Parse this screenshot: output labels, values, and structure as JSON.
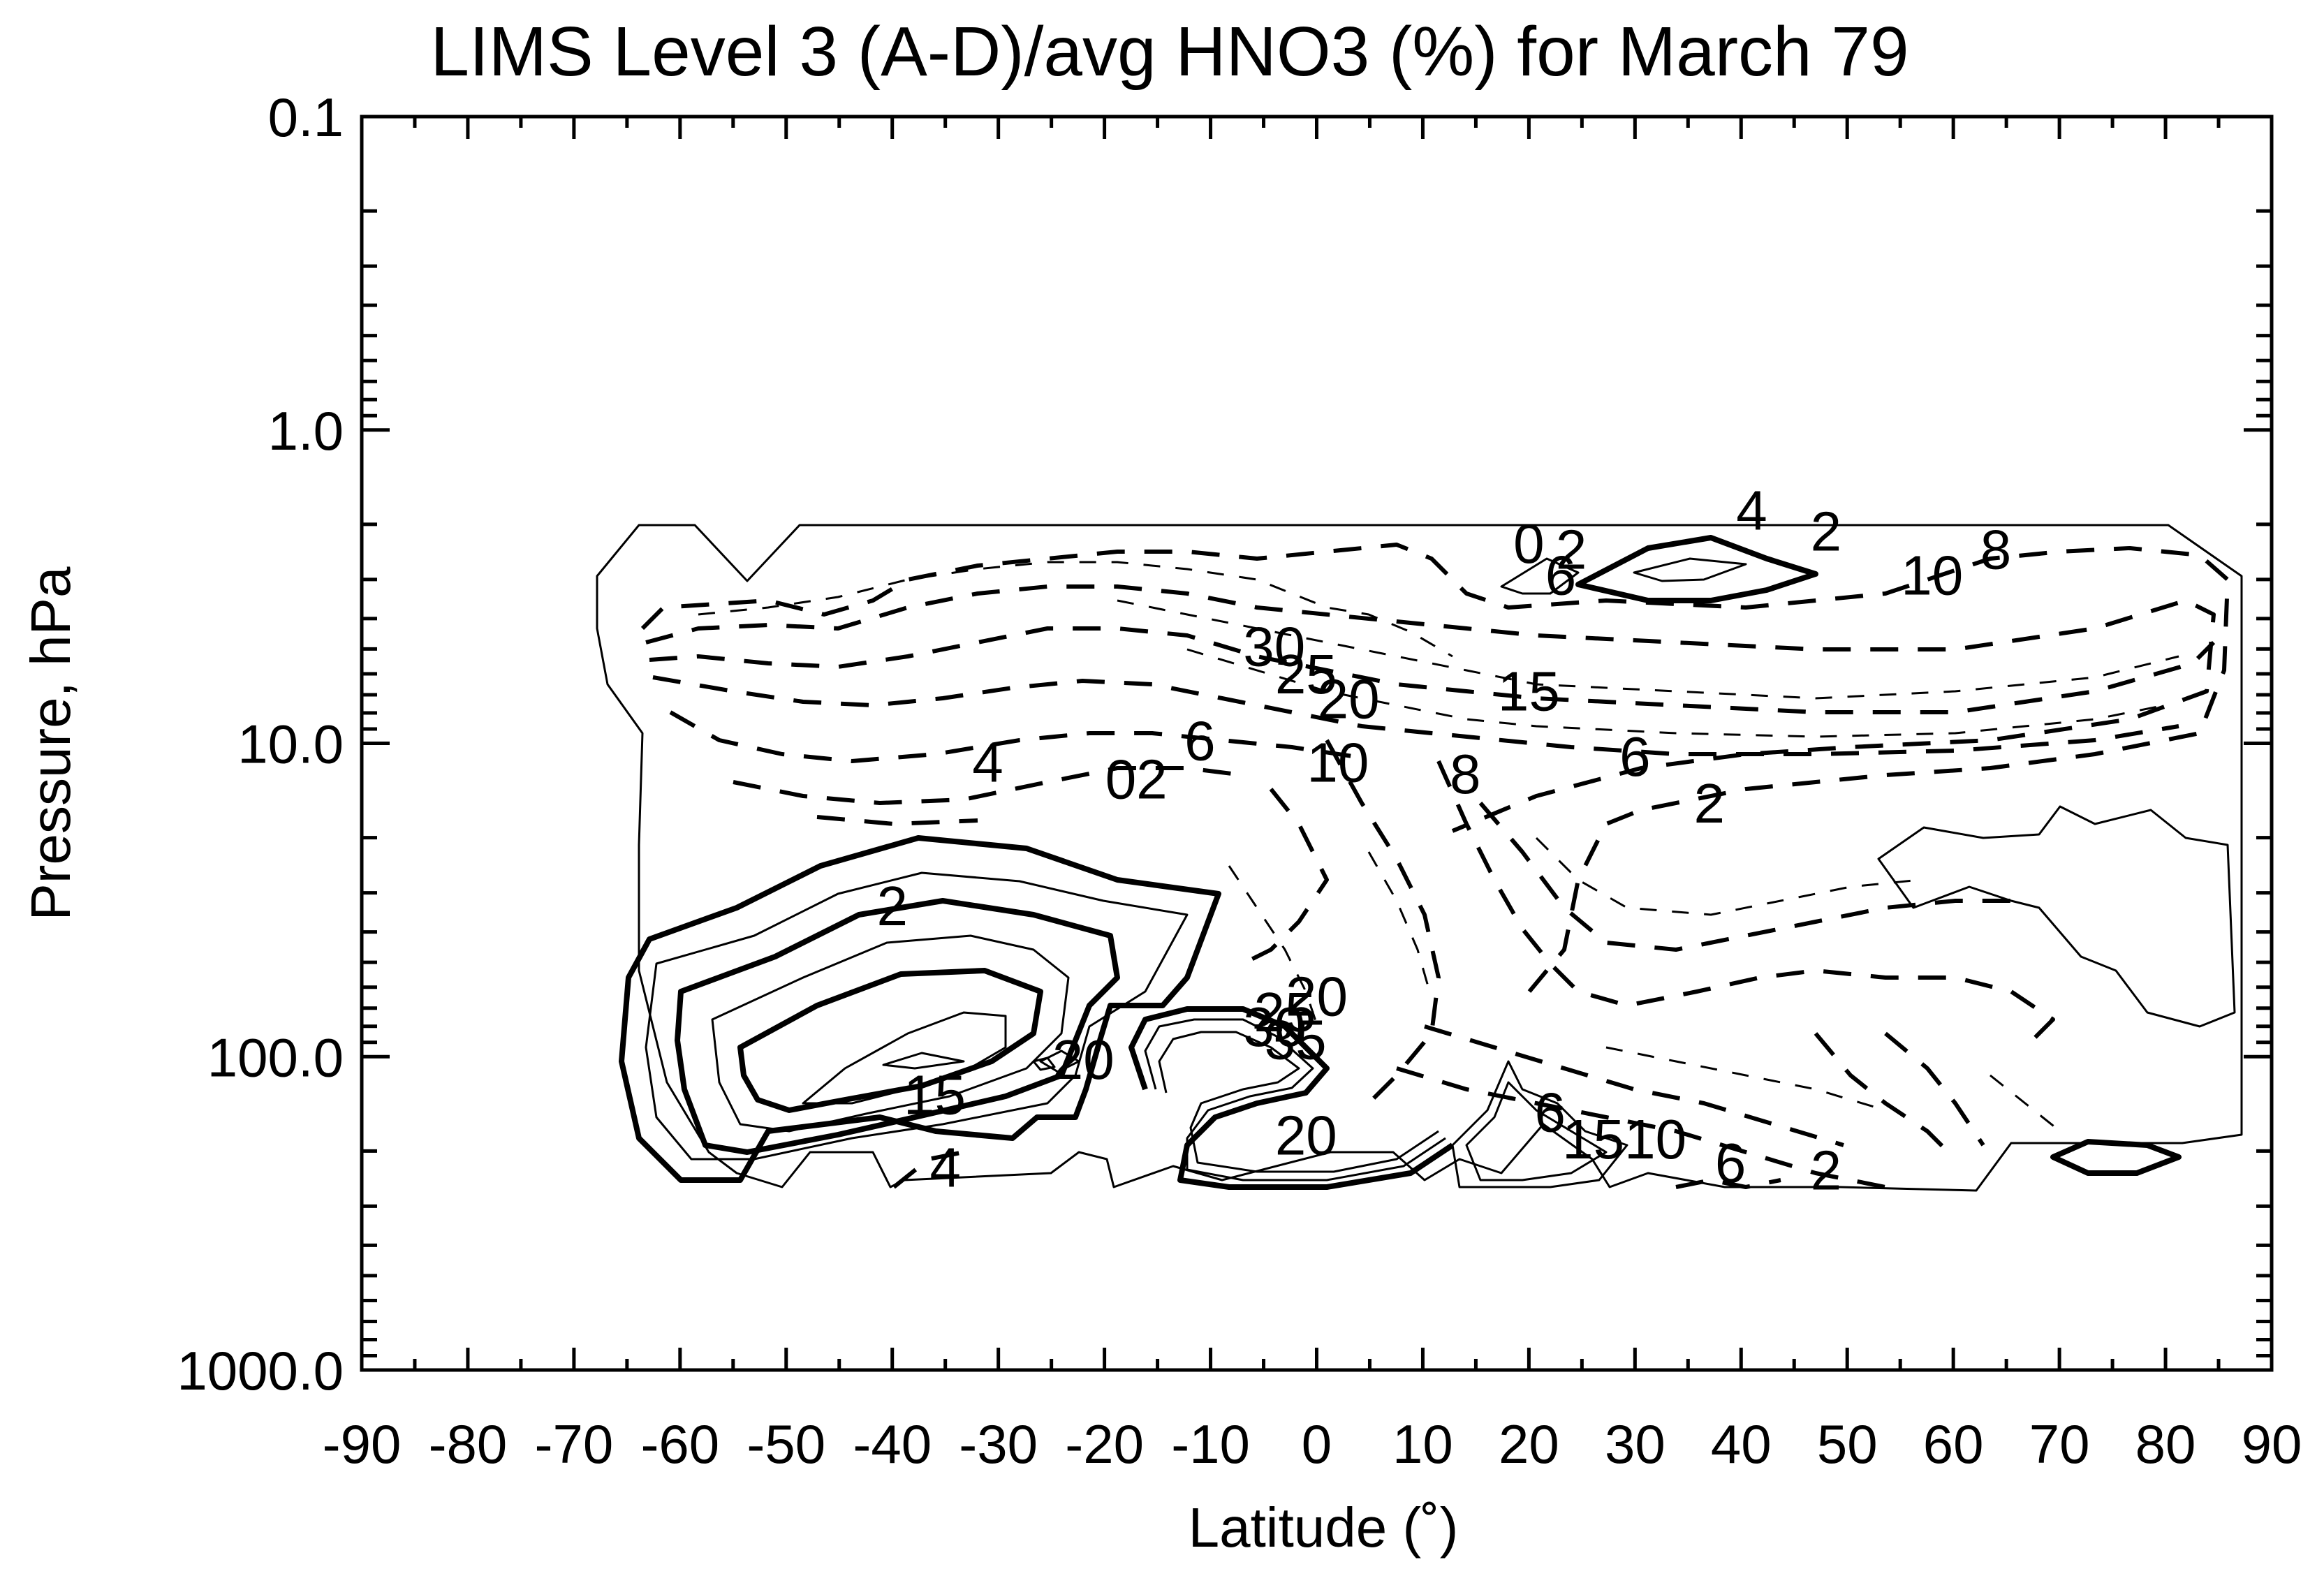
{
  "chart_data": {
    "type": "contour",
    "title": "LIMS Level 3 (A-D)/avg HNO3 (%) for March 79",
    "xlabel": "Latitude (˚)",
    "ylabel": "Pressure, hPa",
    "xlim": [
      -90,
      90
    ],
    "ylim": [
      1000.0,
      0.1
    ],
    "y_scale": "log",
    "x_ticks": [
      -90,
      -80,
      -70,
      -60,
      -50,
      -40,
      -30,
      -20,
      -10,
      0,
      10,
      20,
      30,
      40,
      50,
      60,
      70,
      80,
      90
    ],
    "x_tick_labels": [
      "-90",
      "-80",
      "-70",
      "-60",
      "-50",
      "-40",
      "-30",
      "-20",
      "-10",
      "0",
      "10",
      "20",
      "30",
      "40",
      "50",
      "60",
      "70",
      "80",
      "90"
    ],
    "y_ticks": [
      0.1,
      1.0,
      10.0,
      100.0,
      1000.0
    ],
    "y_tick_labels": [
      "0.1",
      "1.0",
      "10.0",
      "100.0",
      "1000.0"
    ],
    "line_styles": {
      "negative": "dashed",
      "positive": "solid",
      "zero": "thin solid"
    },
    "contour_labels": [
      {
        "text": "4",
        "lat": 41,
        "p": 1.8
      },
      {
        "text": "2",
        "lat": 48,
        "p": 2.1
      },
      {
        "text": "0",
        "lat": 20,
        "p": 2.3
      },
      {
        "text": "2",
        "lat": 24,
        "p": 2.4
      },
      {
        "text": "6",
        "lat": 23,
        "p": 2.9
      },
      {
        "text": "10",
        "lat": 58,
        "p": 2.9
      },
      {
        "text": "8",
        "lat": 64,
        "p": 2.4
      },
      {
        "text": "30",
        "lat": -4,
        "p": 4.9
      },
      {
        "text": "25",
        "lat": -1,
        "p": 6.0
      },
      {
        "text": "20",
        "lat": 3,
        "p": 7.2
      },
      {
        "text": "15",
        "lat": 20,
        "p": 6.8
      },
      {
        "text": "10",
        "lat": 2,
        "p": 11.5
      },
      {
        "text": "8",
        "lat": 14,
        "p": 12.5
      },
      {
        "text": "6",
        "lat": 30,
        "p": 11.0
      },
      {
        "text": "2",
        "lat": 37,
        "p": 15.5
      },
      {
        "text": "6",
        "lat": -11,
        "p": 9.8
      },
      {
        "text": "4",
        "lat": -31,
        "p": 11.5
      },
      {
        "text": "02",
        "lat": -17,
        "p": 13.0
      },
      {
        "text": "2",
        "lat": -40,
        "p": 33.0
      },
      {
        "text": "20",
        "lat": 0,
        "p": 64.0
      },
      {
        "text": "30",
        "lat": -4,
        "p": 80.0
      },
      {
        "text": "35",
        "lat": -2,
        "p": 88.0
      },
      {
        "text": "25",
        "lat": -3,
        "p": 72.0
      },
      {
        "text": "20",
        "lat": -22,
        "p": 102.0
      },
      {
        "text": "15",
        "lat": -36,
        "p": 132.0
      },
      {
        "text": "20",
        "lat": -1,
        "p": 178.0
      },
      {
        "text": "4",
        "lat": -35,
        "p": 225.0
      },
      {
        "text": "6",
        "lat": 22,
        "p": 150.0
      },
      {
        "text": "1510",
        "lat": 29,
        "p": 183.0
      },
      {
        "text": "6",
        "lat": 39,
        "p": 218.0
      },
      {
        "text": "2",
        "lat": 48,
        "p": 230.0
      }
    ]
  }
}
